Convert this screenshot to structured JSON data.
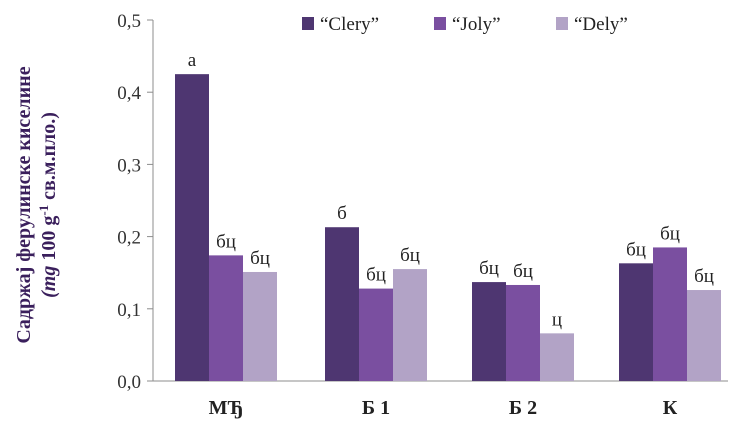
{
  "chart_data": {
    "type": "bar",
    "categories": [
      "МЂ",
      "Б 1",
      "Б 2",
      "К"
    ],
    "series": [
      {
        "name": "“Clery”",
        "values": [
          0.425,
          0.213,
          0.137,
          0.163
        ],
        "labels": [
          "а",
          "б",
          "бц",
          "бц"
        ],
        "color": "#4e3671"
      },
      {
        "name": "“Joly”",
        "values": [
          0.174,
          0.128,
          0.133,
          0.185
        ],
        "labels": [
          "бц",
          "бц",
          "бц",
          "бц"
        ],
        "color": "#7a4fa0"
      },
      {
        "name": "“Dely”",
        "values": [
          0.151,
          0.155,
          0.066,
          0.126
        ],
        "labels": [
          "бц",
          "бц",
          "ц",
          "бц"
        ],
        "color": "#b2a3c6"
      }
    ],
    "yticks": [
      "0,0",
      "0,1",
      "0,2",
      "0,3",
      "0,4",
      "0,5"
    ],
    "ylim": [
      0,
      0.5
    ],
    "ylabel_line1": "Садржај ферулинске киселине",
    "ylabel_line2_a": "(mg",
    "ylabel_line2_b": " 100 g",
    "ylabel_line2_sup": "-1",
    "ylabel_line2_c": " св.м.пло.)",
    "legend_position": "top-right",
    "grid": false
  }
}
